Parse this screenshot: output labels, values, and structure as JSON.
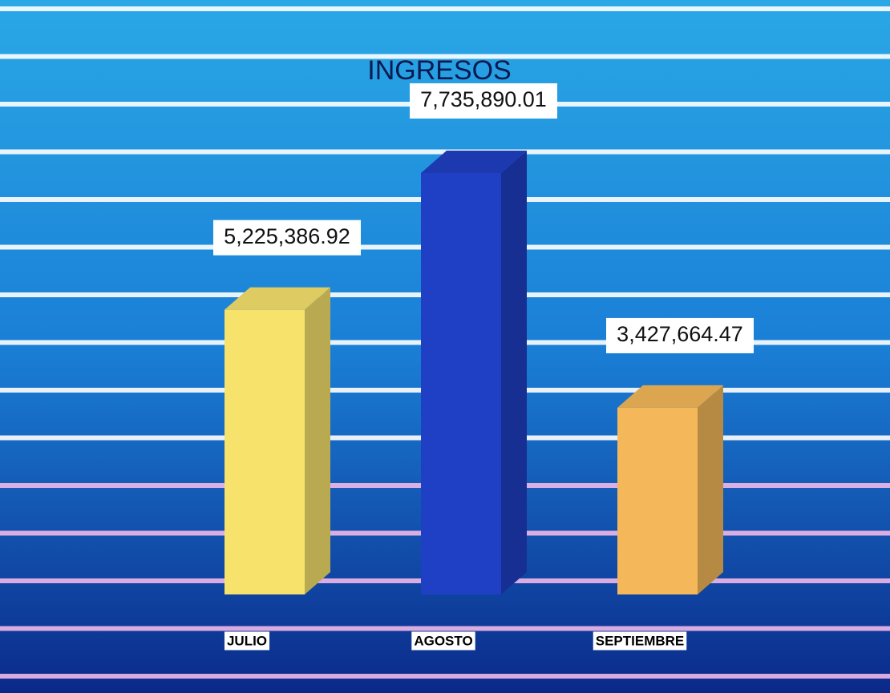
{
  "chart_data": {
    "type": "bar3d",
    "title": "INGRESOS",
    "categories": [
      "JULIO",
      "AGOSTO",
      "SEPTIEMBRE"
    ],
    "values": [
      5225386.92,
      7735890.01,
      3427664.47
    ],
    "value_labels": [
      "5,225,386.92",
      "7,735,890.01",
      "3,427,664.47"
    ],
    "colors": [
      "#f7e26c",
      "#1f3fc4",
      "#f4b85a"
    ],
    "ylim": [
      0,
      9000000
    ]
  }
}
